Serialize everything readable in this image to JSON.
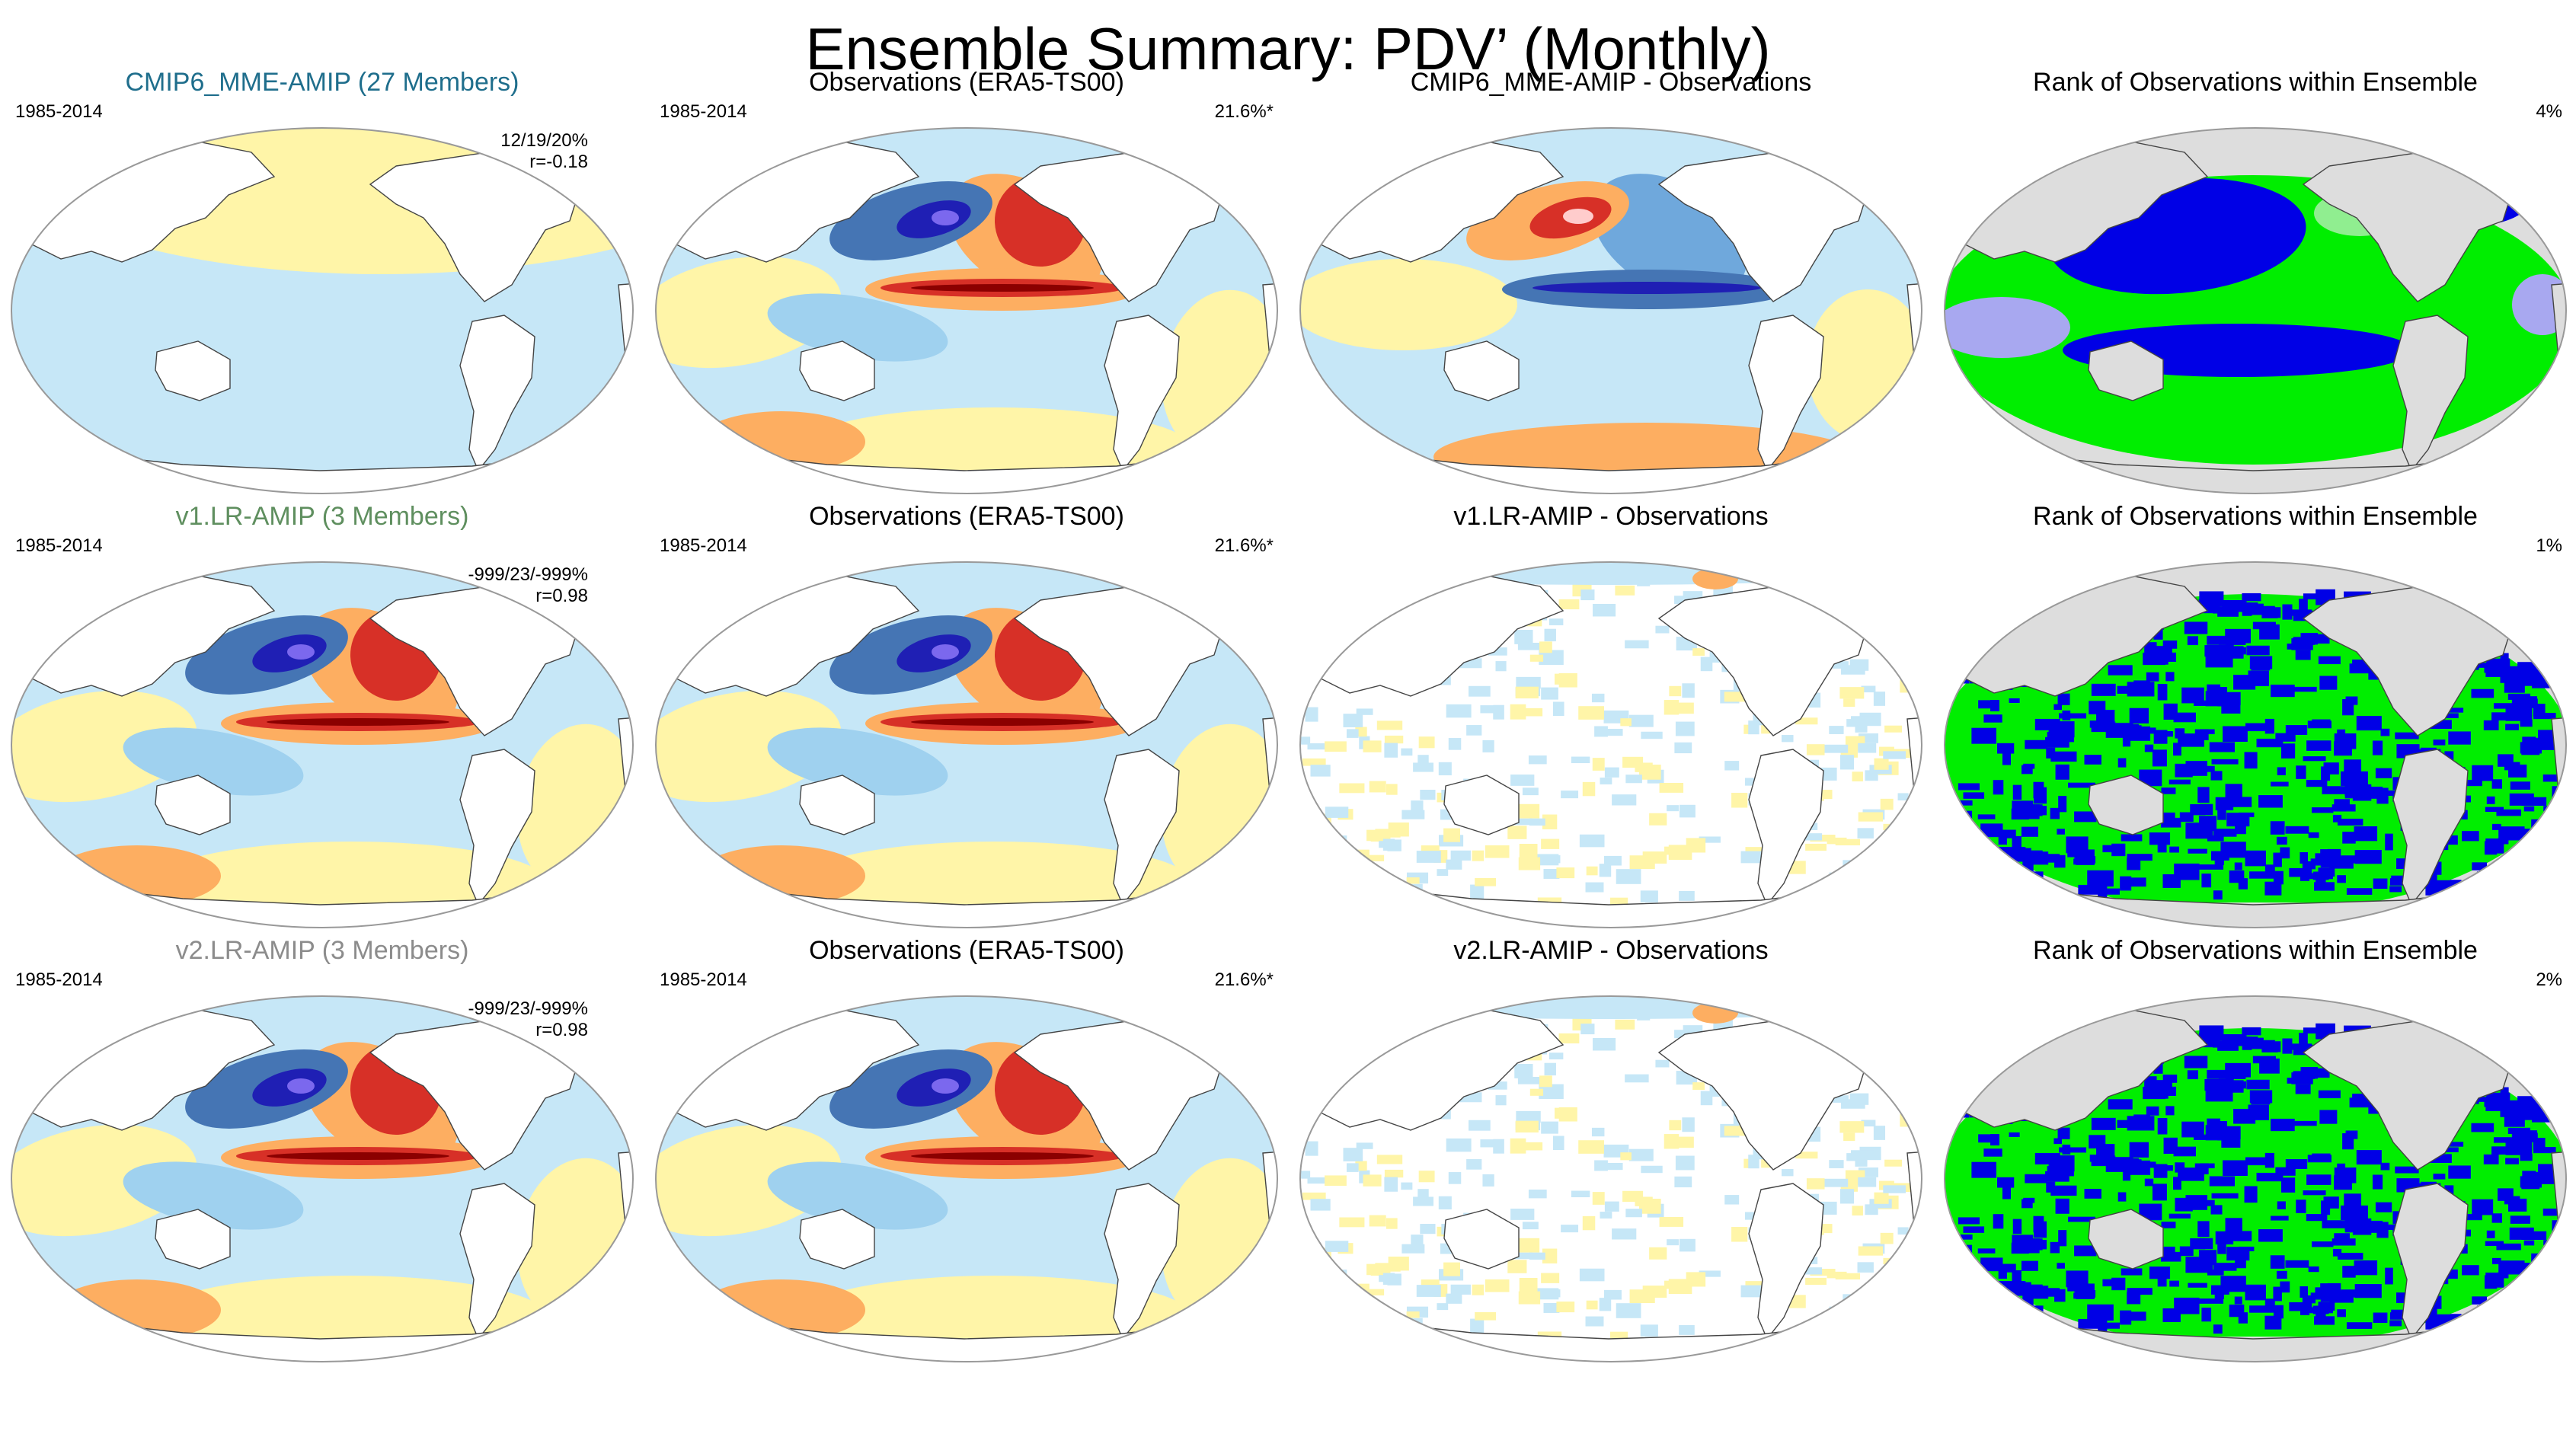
{
  "title": "Ensemble Summary: PDV’ (Monthly)",
  "colors": {
    "cmip6_label": "#1f6e8c",
    "v1_label": "#5f8f5f",
    "v2_label": "#8c8c8c",
    "rank_blue": "#0000e6",
    "rank_green": "#00ee00",
    "rank_lightgreen": "#90ee90",
    "rank_lavender": "#a8a8f0",
    "rank_land": "#dddddd",
    "anomaly_red": "#d73027",
    "anomaly_orange": "#fdae61",
    "anomaly_yellow": "#fff5a8",
    "anomaly_lightblue": "#c6e7f7",
    "anomaly_blue": "#4575b4",
    "anomaly_darkblue": "#1f1fb4"
  },
  "panels": [
    {
      "title": "CMIP6_MME-AMIP (27 Members)",
      "period": "1985-2014",
      "stats": [
        "12/19/20%",
        "r=-0.18"
      ],
      "percent": ""
    },
    {
      "title": "Observations (ERA5-TS00)",
      "period": "1985-2014",
      "stats": [],
      "percent": "21.6%*"
    },
    {
      "title": "CMIP6_MME-AMIP - Observations",
      "period": "",
      "stats": [],
      "percent": ""
    },
    {
      "title": "Rank of Observations within Ensemble",
      "period": "",
      "stats": [],
      "percent": "4%"
    },
    {
      "title": "v1.LR-AMIP (3 Members)",
      "period": "1985-2014",
      "stats": [
        "-999/23/-999%",
        "r=0.98"
      ],
      "percent": ""
    },
    {
      "title": "Observations (ERA5-TS00)",
      "period": "1985-2014",
      "stats": [],
      "percent": "21.6%*"
    },
    {
      "title": "v1.LR-AMIP - Observations",
      "period": "",
      "stats": [],
      "percent": ""
    },
    {
      "title": "Rank of Observations within Ensemble",
      "period": "",
      "stats": [],
      "percent": "1%"
    },
    {
      "title": "v2.LR-AMIP (3 Members)",
      "period": "1985-2014",
      "stats": [
        "-999/23/-999%",
        "r=0.98"
      ],
      "percent": ""
    },
    {
      "title": "Observations (ERA5-TS00)",
      "period": "1985-2014",
      "stats": [],
      "percent": "21.6%*"
    },
    {
      "title": "v2.LR-AMIP - Observations",
      "period": "",
      "stats": [],
      "percent": ""
    },
    {
      "title": "Rank of Observations within Ensemble",
      "period": "",
      "stats": [],
      "percent": "2%"
    }
  ]
}
